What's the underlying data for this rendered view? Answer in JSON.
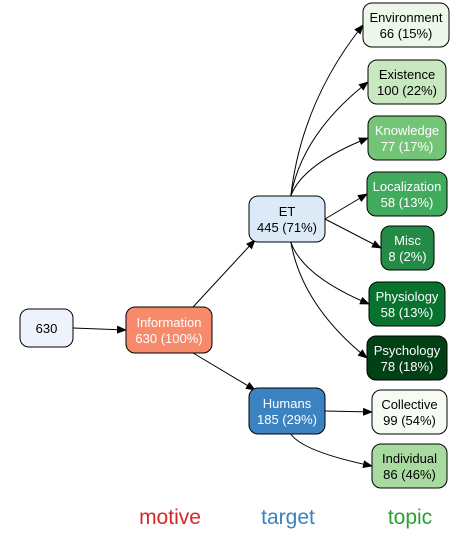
{
  "root": {
    "label": "630",
    "fill": "#eef2fb",
    "text_color": "#000000"
  },
  "motive": {
    "label": "Information",
    "value": "630 (100%)",
    "fill": "#f68a6a",
    "text_color": "#ffffff"
  },
  "targets": [
    {
      "id": "et",
      "label": "ET",
      "value": "445 (71%)",
      "fill": "#dce9f6",
      "text_color": "#000000"
    },
    {
      "id": "humans",
      "label": "Humans",
      "value": "185 (29%)",
      "fill": "#3a82c0",
      "text_color": "#ffffff"
    }
  ],
  "topics": [
    {
      "id": "environment",
      "parent": "et",
      "label": "Environment",
      "value": "66 (15%)",
      "fill": "#eef8ea",
      "text_color": "#000000"
    },
    {
      "id": "existence",
      "parent": "et",
      "label": "Existence",
      "value": "100 (22%)",
      "fill": "#c8e9c0",
      "text_color": "#000000"
    },
    {
      "id": "knowledge",
      "parent": "et",
      "label": "Knowledge",
      "value": "77 (17%)",
      "fill": "#73c476",
      "text_color": "#ffffff"
    },
    {
      "id": "localization",
      "parent": "et",
      "label": "Localization",
      "value": "58 (13%)",
      "fill": "#41ab5d",
      "text_color": "#ffffff"
    },
    {
      "id": "misc",
      "parent": "et",
      "label": "Misc",
      "value": "8 (2%)",
      "fill": "#238b45",
      "text_color": "#ffffff"
    },
    {
      "id": "physiology",
      "parent": "et",
      "label": "Physiology",
      "value": "58 (13%)",
      "fill": "#07732f",
      "text_color": "#ffffff"
    },
    {
      "id": "psychology",
      "parent": "et",
      "label": "Psychology",
      "value": "78 (18%)",
      "fill": "#013f15",
      "text_color": "#ffffff"
    },
    {
      "id": "collective",
      "parent": "humans",
      "label": "Collective",
      "value": "99 (54%)",
      "fill": "#f6fbf3",
      "text_color": "#000000"
    },
    {
      "id": "individual",
      "parent": "humans",
      "label": "Individual",
      "value": "86 (46%)",
      "fill": "#a9dba1",
      "text_color": "#000000"
    }
  ],
  "levels": [
    {
      "label": "motive",
      "color": "#d62728"
    },
    {
      "label": "target",
      "color": "#3a82c0"
    },
    {
      "label": "topic",
      "color": "#2ca02c"
    }
  ]
}
